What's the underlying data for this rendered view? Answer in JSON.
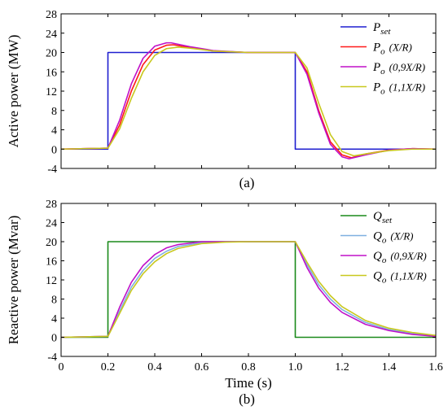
{
  "chart_data": [
    {
      "type": "line",
      "caption": "(a)",
      "ylabel": "Active power (MW)",
      "xlabel": "",
      "xlim": [
        0,
        1.6
      ],
      "ylim": [
        -4,
        28
      ],
      "yticks": [
        -4,
        0,
        4,
        8,
        12,
        16,
        20,
        24,
        28
      ],
      "xticks": [
        0,
        0.2,
        0.4,
        0.6,
        0.8,
        1.0,
        1.2,
        1.4,
        1.6
      ],
      "show_xtick_labels": false,
      "grid": false,
      "legend": "top-right",
      "series": [
        {
          "name": "P",
          "sub": "set",
          "paren": "",
          "color": "#1f1fd0",
          "x": [
            0,
            0.2,
            0.2,
            1.0,
            1.0,
            1.6
          ],
          "y": [
            0,
            0,
            20,
            20,
            0,
            0
          ]
        },
        {
          "name": "P",
          "sub": "o",
          "paren": "(X/R)",
          "color": "#ff1a1a",
          "x": [
            0,
            0.2,
            0.25,
            0.3,
            0.35,
            0.4,
            0.45,
            0.48,
            0.55,
            0.65,
            0.8,
            0.95,
            1.0,
            1.05,
            1.1,
            1.15,
            1.2,
            1.24,
            1.3,
            1.4,
            1.5,
            1.6
          ],
          "y": [
            0,
            0.2,
            5,
            12,
            17.5,
            20.5,
            21.5,
            21.6,
            21,
            20.3,
            20,
            20,
            20,
            16,
            8,
            1.5,
            -1.2,
            -1.8,
            -1,
            -0.2,
            0.1,
            0
          ]
        },
        {
          "name": "P",
          "sub": "o",
          "paren": "(0,9X/R)",
          "color": "#c010c8",
          "x": [
            0,
            0.2,
            0.25,
            0.3,
            0.35,
            0.4,
            0.45,
            0.47,
            0.55,
            0.65,
            0.8,
            0.95,
            1.0,
            1.05,
            1.1,
            1.15,
            1.2,
            1.23,
            1.3,
            1.4,
            1.5,
            1.6
          ],
          "y": [
            0,
            0.2,
            6,
            13.5,
            18.8,
            21.3,
            22,
            22,
            21.2,
            20.4,
            20,
            20,
            20,
            15.5,
            7.5,
            1,
            -1.6,
            -2,
            -1.2,
            -0.2,
            0.1,
            0
          ]
        },
        {
          "name": "P",
          "sub": "o",
          "paren": "(1,1X/R)",
          "color": "#c8c81e",
          "x": [
            0,
            0.2,
            0.25,
            0.3,
            0.35,
            0.4,
            0.45,
            0.5,
            0.55,
            0.65,
            0.8,
            0.95,
            1.0,
            1.05,
            1.1,
            1.15,
            1.2,
            1.25,
            1.3,
            1.4,
            1.5,
            1.6
          ],
          "y": [
            0,
            0.2,
            4.2,
            10.5,
            16,
            19.4,
            20.8,
            21.1,
            20.9,
            20.3,
            20,
            20,
            20,
            16.8,
            9.5,
            3,
            -0.5,
            -1.4,
            -1,
            -0.3,
            0,
            0
          ]
        }
      ]
    },
    {
      "type": "line",
      "caption": "(b)",
      "ylabel": "Reactive power (Mvar)",
      "xlabel": "Time (s)",
      "xlim": [
        0,
        1.6
      ],
      "ylim": [
        -4,
        28
      ],
      "yticks": [
        -4,
        0,
        4,
        8,
        12,
        16,
        20,
        24,
        28
      ],
      "xticks": [
        0,
        0.2,
        0.4,
        0.6,
        0.8,
        1.0,
        1.2,
        1.4,
        1.6
      ],
      "show_xtick_labels": true,
      "grid": false,
      "legend": "top-right",
      "series": [
        {
          "name": "Q",
          "sub": "set",
          "paren": "",
          "color": "#1a8a1a",
          "x": [
            0,
            0.2,
            0.2,
            1.0,
            1.0,
            1.6
          ],
          "y": [
            0,
            0,
            20,
            20,
            0,
            0
          ]
        },
        {
          "name": "Q",
          "sub": "o",
          "paren": "(X/R)",
          "color": "#7fb0e0",
          "x": [
            0,
            0.2,
            0.25,
            0.3,
            0.35,
            0.4,
            0.45,
            0.5,
            0.6,
            0.7,
            0.8,
            0.9,
            1.0,
            1.05,
            1.1,
            1.15,
            1.2,
            1.3,
            1.4,
            1.5,
            1.6
          ],
          "y": [
            0,
            0.2,
            5.5,
            10.5,
            14,
            16.5,
            18,
            19,
            19.8,
            20,
            20,
            20,
            20,
            15.2,
            11,
            8,
            5.8,
            3.1,
            1.6,
            0.8,
            0.3
          ]
        },
        {
          "name": "Q",
          "sub": "o",
          "paren": "(0,9X/R)",
          "color": "#c010c8",
          "x": [
            0,
            0.2,
            0.25,
            0.3,
            0.35,
            0.4,
            0.45,
            0.5,
            0.6,
            0.7,
            0.8,
            0.9,
            1.0,
            1.05,
            1.1,
            1.15,
            1.2,
            1.3,
            1.4,
            1.5,
            1.6
          ],
          "y": [
            0,
            0.2,
            6.3,
            11.5,
            15,
            17.3,
            18.7,
            19.4,
            20,
            20,
            20,
            20,
            20,
            14.6,
            10.3,
            7.3,
            5.2,
            2.7,
            1.4,
            0.6,
            0.2
          ]
        },
        {
          "name": "Q",
          "sub": "o",
          "paren": "(1,1X/R)",
          "color": "#c8c81e",
          "x": [
            0,
            0.2,
            0.25,
            0.3,
            0.35,
            0.4,
            0.45,
            0.5,
            0.6,
            0.7,
            0.8,
            0.9,
            1.0,
            1.05,
            1.1,
            1.15,
            1.2,
            1.3,
            1.4,
            1.5,
            1.6
          ],
          "y": [
            0,
            0.2,
            5,
            9.8,
            13.3,
            15.8,
            17.5,
            18.6,
            19.6,
            19.9,
            20,
            20,
            20,
            15.7,
            11.7,
            8.7,
            6.4,
            3.5,
            1.9,
            1.0,
            0.4
          ]
        }
      ]
    }
  ]
}
